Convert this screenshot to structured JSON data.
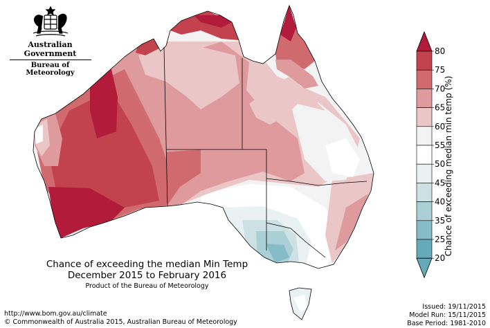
{
  "org": {
    "line1": "Australian Government",
    "line2": "Bureau of Meteorology"
  },
  "map": {
    "title_line1": "Chance of exceeding the median Min Temp",
    "title_line2": "December 2015 to February 2016",
    "product_note": "Product of the Bureau of Meteorology"
  },
  "legend": {
    "title": "Chance of exceeding median min temp (%)",
    "levels": [
      {
        "value": "80",
        "color": "#b31b3b"
      },
      {
        "value": "75",
        "color": "#c2434e"
      },
      {
        "value": "70",
        "color": "#d06a6e"
      },
      {
        "value": "65",
        "color": "#de9a9d"
      },
      {
        "value": "60",
        "color": "#eac6c7"
      },
      {
        "value": "55",
        "color": "#f3f3f3"
      },
      {
        "value": "50",
        "color": "#ffffff"
      },
      {
        "value": "45",
        "color": "#eaf1f3"
      },
      {
        "value": "40",
        "color": "#cde1e5"
      },
      {
        "value": "35",
        "color": "#aacfd5"
      },
      {
        "value": "25",
        "color": "#85bcc7"
      },
      {
        "value": "20",
        "color": "#66a9b9"
      }
    ]
  },
  "footer": {
    "url": "http://www.bom.gov.au/climate",
    "copyright": "© Commonwealth of Australia 2015, Australian Bureau of Meteorology",
    "issued": "Issued: 19/11/2015",
    "model_run": "Model Run: 15/11/2015",
    "base_period": "Base Period: 1981-2010"
  }
}
